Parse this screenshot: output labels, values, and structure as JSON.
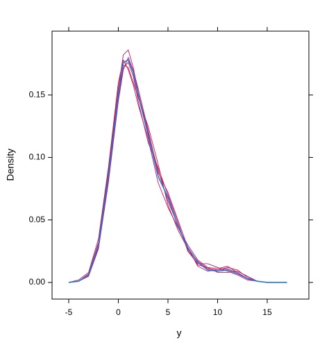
{
  "chart_data": {
    "type": "line",
    "xlabel": "y",
    "ylabel": "Density",
    "x": [
      -5,
      -4,
      -3,
      -2,
      -1,
      0,
      0.5,
      1,
      1.5,
      2,
      3,
      4,
      5,
      6,
      7,
      8,
      9,
      10,
      11,
      12,
      13,
      14,
      15,
      16,
      17
    ],
    "series": [
      {
        "color": "#c2185b",
        "values": [
          0,
          0.001,
          0.007,
          0.032,
          0.09,
          0.155,
          0.182,
          0.186,
          0.172,
          0.152,
          0.12,
          0.09,
          0.065,
          0.046,
          0.026,
          0.014,
          0.012,
          0.011,
          0.013,
          0.008,
          0.003,
          0.001,
          0,
          0,
          null
        ]
      },
      {
        "color": "#c2185b",
        "values": [
          0,
          0.001,
          0.005,
          0.028,
          0.082,
          0.148,
          0.172,
          0.176,
          0.165,
          0.145,
          0.112,
          0.092,
          0.07,
          0.048,
          0.025,
          0.015,
          0.015,
          0.012,
          0.009,
          0.006,
          0.002,
          0.001,
          0,
          0,
          null
        ]
      },
      {
        "color": "#c2185b",
        "values": [
          0,
          0.001,
          0.006,
          0.031,
          0.088,
          0.156,
          0.174,
          0.172,
          0.16,
          0.148,
          0.125,
          0.095,
          0.062,
          0.042,
          0.027,
          0.017,
          0.011,
          0.01,
          0.012,
          0.01,
          0.004,
          0.001,
          0,
          0,
          null
        ]
      },
      {
        "color": "#c2185b",
        "values": [
          0,
          0.002,
          0.008,
          0.035,
          0.092,
          0.16,
          0.178,
          0.17,
          0.158,
          0.142,
          0.115,
          0.08,
          0.06,
          0.044,
          0.03,
          0.018,
          0.012,
          0.008,
          0.008,
          0.009,
          0.005,
          0.001,
          0,
          0,
          null
        ]
      },
      {
        "color": "#c2185b",
        "values": [
          0,
          0.001,
          0.005,
          0.027,
          0.08,
          0.145,
          0.17,
          0.18,
          0.17,
          0.155,
          0.122,
          0.088,
          0.072,
          0.05,
          0.028,
          0.013,
          0.009,
          0.01,
          0.011,
          0.008,
          0.003,
          0.001,
          0,
          0,
          null
        ]
      },
      {
        "color": "#1f78d1",
        "values": [
          0,
          0.001,
          0.006,
          0.03,
          0.085,
          0.15,
          0.176,
          0.178,
          0.168,
          0.15,
          0.118,
          0.085,
          0.068,
          0.045,
          0.028,
          0.016,
          0.01,
          0.009,
          0.01,
          0.007,
          0.003,
          0.001,
          0,
          0,
          0
        ]
      }
    ],
    "xlim": [
      -6.68,
      19.2
    ],
    "xticks": [
      -5,
      0,
      5,
      10,
      15
    ],
    "ylim": [
      -0.0133,
      0.201
    ],
    "yticks": [
      {
        "value": 0,
        "label": "0.00"
      },
      0.05,
      {
        "value": 0.1,
        "label": "0.10"
      },
      0.15
    ]
  }
}
